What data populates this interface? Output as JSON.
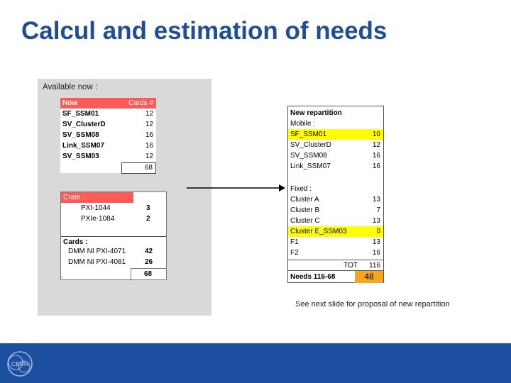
{
  "slide": {
    "title": "Calcul and estimation of needs",
    "available_label": "Available now :",
    "note": "See next slide for proposal of new repartition",
    "stray_mark": "."
  },
  "now_table": {
    "header": [
      "Now",
      "Cards #"
    ],
    "rows": [
      {
        "name": "SF_SSM01",
        "cards": "12"
      },
      {
        "name": "SV_ClusterD",
        "cards": "12"
      },
      {
        "name": "SV_SSM08",
        "cards": "16"
      },
      {
        "name": "Link_SSM07",
        "cards": "16"
      },
      {
        "name": "SV_SSM03",
        "cards": "12"
      }
    ],
    "total": "68"
  },
  "crate_table": {
    "header": "Crate :",
    "crates": [
      {
        "name": "PXI-1044",
        "value": "3"
      },
      {
        "name": "PXIe-1084",
        "value": "2"
      }
    ],
    "cards_label": "Cards :",
    "cards": [
      {
        "name": "DMM NI PXI-4071",
        "value": "42"
      },
      {
        "name": "DMM NI PXI-4081",
        "value": "26"
      }
    ],
    "total": "68"
  },
  "repartition_table": {
    "title": "New repartition",
    "mobile_label": "Mobile :",
    "mobile": [
      {
        "name": "SF_SSM01",
        "value": "10",
        "highlight": true
      },
      {
        "name": "SV_ClusterD",
        "value": "12",
        "highlight": false
      },
      {
        "name": "SV_SSM08",
        "value": "16",
        "highlight": false
      },
      {
        "name": "Link_SSM07",
        "value": "16",
        "highlight": false
      }
    ],
    "fixed_label": "Fixed :",
    "fixed": [
      {
        "name": "Cluster A",
        "value": "13",
        "highlight": false
      },
      {
        "name": "Cluster B",
        "value": "7",
        "highlight": false
      },
      {
        "name": "Cluster C",
        "value": "13",
        "highlight": false
      },
      {
        "name": "Cluster E_SSM03",
        "value": "0",
        "highlight": true
      },
      {
        "name": "F1",
        "value": "13",
        "highlight": false
      },
      {
        "name": "F2",
        "value": "16",
        "highlight": false
      }
    ],
    "tot_label": "TOT",
    "tot_value": "116",
    "needs_label": "Needs 116-68",
    "needs_value": "48"
  },
  "colors": {
    "title": "#1f4e96",
    "header_red": "#ff5a5a",
    "highlight": "#ffff00",
    "footer": "#1c4fa0",
    "needs_bg": "#f5a623"
  }
}
